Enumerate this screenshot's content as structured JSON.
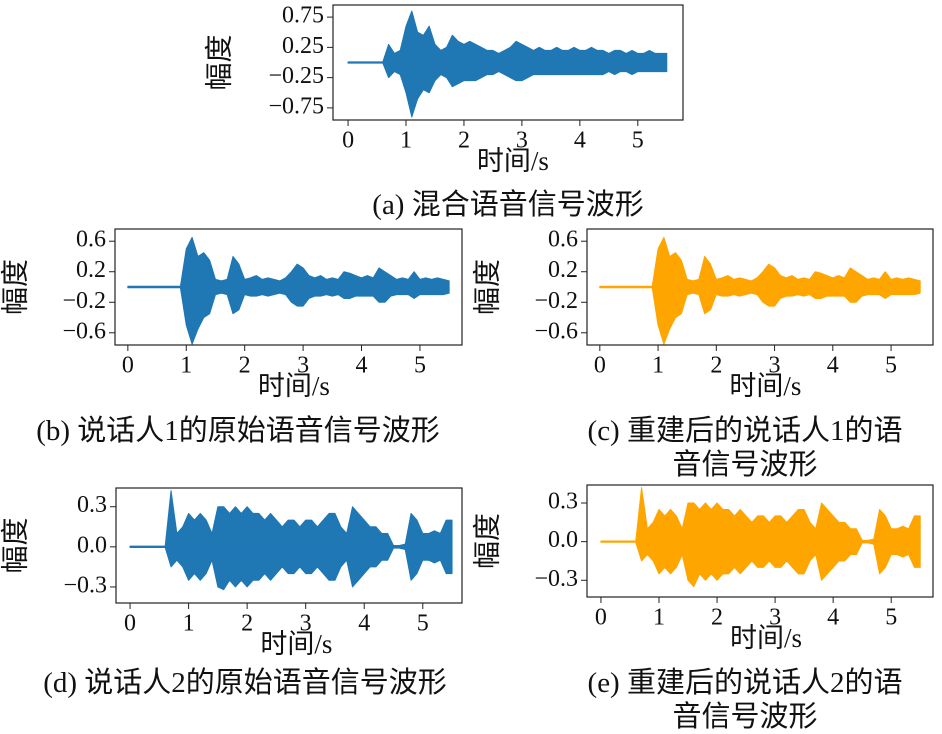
{
  "chart_data": [
    {
      "type": "area",
      "title": "(a) 混合语音信号波形",
      "xlabel": "时间/s",
      "ylabel": "幅度",
      "x": [
        0,
        0.1,
        0.2,
        0.3,
        0.4,
        0.5,
        0.6,
        0.7,
        0.8,
        0.9,
        1.0,
        1.1,
        1.2,
        1.3,
        1.4,
        1.5,
        1.6,
        1.7,
        1.8,
        1.9,
        2.0,
        2.1,
        2.2,
        2.3,
        2.4,
        2.5,
        2.6,
        2.7,
        2.8,
        2.9,
        3.0,
        3.1,
        3.2,
        3.3,
        3.4,
        3.5,
        3.6,
        3.7,
        3.8,
        3.9,
        4.0,
        4.1,
        4.2,
        4.3,
        4.4,
        4.5,
        4.6,
        4.7,
        4.8,
        4.9,
        5.0,
        5.1,
        5.2,
        5.3,
        5.4,
        5.5
      ],
      "series": [
        {
          "color": "#1f77b4",
          "values": [
            0.01,
            0.01,
            0.01,
            0.01,
            0.01,
            0.01,
            0.01,
            0.3,
            0.15,
            0.2,
            0.6,
            0.85,
            0.5,
            0.45,
            0.6,
            0.3,
            0.2,
            0.25,
            0.45,
            0.35,
            0.3,
            0.35,
            0.3,
            0.25,
            0.2,
            0.2,
            0.15,
            0.2,
            0.25,
            0.35,
            0.3,
            0.25,
            0.2,
            0.25,
            0.2,
            0.2,
            0.25,
            0.2,
            0.2,
            0.25,
            0.2,
            0.2,
            0.25,
            0.2,
            0.2,
            0.15,
            0.2,
            0.2,
            0.15,
            0.2,
            0.15,
            0.15,
            0.2,
            0.15,
            0.15,
            0.15
          ]
        },
        {
          "color": "#1f77b4",
          "values": [
            -0.01,
            -0.01,
            -0.01,
            -0.01,
            -0.01,
            -0.01,
            -0.01,
            -0.25,
            -0.15,
            -0.2,
            -0.5,
            -0.9,
            -0.6,
            -0.45,
            -0.5,
            -0.3,
            -0.2,
            -0.25,
            -0.4,
            -0.35,
            -0.3,
            -0.3,
            -0.3,
            -0.25,
            -0.2,
            -0.2,
            -0.15,
            -0.2,
            -0.25,
            -0.3,
            -0.3,
            -0.25,
            -0.2,
            -0.2,
            -0.2,
            -0.2,
            -0.2,
            -0.2,
            -0.2,
            -0.2,
            -0.2,
            -0.2,
            -0.2,
            -0.2,
            -0.2,
            -0.15,
            -0.2,
            -0.15,
            -0.15,
            -0.2,
            -0.15,
            -0.15,
            -0.15,
            -0.15,
            -0.15,
            -0.15
          ]
        }
      ],
      "xlim": [
        -0.26,
        5.78
      ],
      "xticks": [
        0,
        1,
        2,
        3,
        4,
        5
      ],
      "ylim": [
        -0.95,
        0.95
      ],
      "yticks": [
        0.75,
        0.25,
        {
          "value": -0.25,
          "label": "−0.25"
        },
        {
          "value": -0.75,
          "label": "−0.75"
        }
      ]
    },
    {
      "type": "area",
      "title": "(b) 说话人1的原始语音信号波形",
      "xlabel": "时间/s",
      "ylabel": "幅度",
      "x": [
        0,
        0.1,
        0.2,
        0.3,
        0.4,
        0.5,
        0.6,
        0.7,
        0.8,
        0.9,
        1.0,
        1.1,
        1.2,
        1.3,
        1.4,
        1.5,
        1.6,
        1.7,
        1.8,
        1.9,
        2.0,
        2.1,
        2.2,
        2.3,
        2.4,
        2.5,
        2.6,
        2.7,
        2.8,
        2.9,
        3.0,
        3.1,
        3.2,
        3.3,
        3.4,
        3.5,
        3.6,
        3.7,
        3.8,
        3.9,
        4.0,
        4.1,
        4.2,
        4.3,
        4.4,
        4.5,
        4.6,
        4.7,
        4.8,
        4.9,
        5.0,
        5.1,
        5.2,
        5.3,
        5.4,
        5.5
      ],
      "series": [
        {
          "color": "#1f77b4",
          "values": [
            0.01,
            0.01,
            0.01,
            0.01,
            0.01,
            0.01,
            0.01,
            0.01,
            0.01,
            0.01,
            0.5,
            0.65,
            0.4,
            0.45,
            0.35,
            0.1,
            0.08,
            0.1,
            0.4,
            0.3,
            0.1,
            0.12,
            0.15,
            0.1,
            0.12,
            0.1,
            0.08,
            0.12,
            0.2,
            0.3,
            0.25,
            0.15,
            0.12,
            0.15,
            0.1,
            0.12,
            0.1,
            0.2,
            0.18,
            0.15,
            0.12,
            0.15,
            0.12,
            0.25,
            0.2,
            0.15,
            0.1,
            0.12,
            0.1,
            0.2,
            0.1,
            0.12,
            0.1,
            0.12,
            0.1,
            0.08
          ]
        },
        {
          "color": "#1f77b4",
          "values": [
            -0.01,
            -0.01,
            -0.01,
            -0.01,
            -0.01,
            -0.01,
            -0.01,
            -0.01,
            -0.01,
            -0.01,
            -0.5,
            -0.75,
            -0.55,
            -0.4,
            -0.35,
            -0.1,
            -0.08,
            -0.1,
            -0.35,
            -0.3,
            -0.1,
            -0.12,
            -0.12,
            -0.1,
            -0.12,
            -0.1,
            -0.08,
            -0.1,
            -0.2,
            -0.25,
            -0.25,
            -0.15,
            -0.12,
            -0.12,
            -0.1,
            -0.12,
            -0.1,
            -0.15,
            -0.15,
            -0.12,
            -0.12,
            -0.12,
            -0.12,
            -0.2,
            -0.2,
            -0.12,
            -0.1,
            -0.1,
            -0.1,
            -0.15,
            -0.1,
            -0.1,
            -0.1,
            -0.1,
            -0.1,
            -0.08
          ]
        }
      ],
      "xlim": [
        -0.22,
        5.72
      ],
      "xticks": [
        0,
        1,
        2,
        3,
        4,
        5
      ],
      "ylim": [
        -0.76,
        0.76
      ],
      "yticks": [
        0.6,
        0.2,
        {
          "value": -0.2,
          "label": "−0.2"
        },
        {
          "value": -0.6,
          "label": "−0.6"
        }
      ]
    },
    {
      "type": "area",
      "title": "(c) 重建后的说话人1的语音信号波形",
      "xlabel": "时间/s",
      "ylabel": "幅度",
      "x": [
        0,
        0.1,
        0.2,
        0.3,
        0.4,
        0.5,
        0.6,
        0.7,
        0.8,
        0.9,
        1.0,
        1.1,
        1.2,
        1.3,
        1.4,
        1.5,
        1.6,
        1.7,
        1.8,
        1.9,
        2.0,
        2.1,
        2.2,
        2.3,
        2.4,
        2.5,
        2.6,
        2.7,
        2.8,
        2.9,
        3.0,
        3.1,
        3.2,
        3.3,
        3.4,
        3.5,
        3.6,
        3.7,
        3.8,
        3.9,
        4.0,
        4.1,
        4.2,
        4.3,
        4.4,
        4.5,
        4.6,
        4.7,
        4.8,
        4.9,
        5.0,
        5.1,
        5.2,
        5.3,
        5.4,
        5.5
      ],
      "series": [
        {
          "color": "#ffa500",
          "values": [
            0.01,
            0.01,
            0.01,
            0.01,
            0.01,
            0.01,
            0.01,
            0.01,
            0.01,
            0.01,
            0.5,
            0.65,
            0.4,
            0.45,
            0.35,
            0.1,
            0.08,
            0.1,
            0.4,
            0.3,
            0.1,
            0.12,
            0.15,
            0.1,
            0.12,
            0.1,
            0.08,
            0.12,
            0.2,
            0.3,
            0.25,
            0.15,
            0.12,
            0.15,
            0.1,
            0.12,
            0.1,
            0.2,
            0.18,
            0.15,
            0.12,
            0.15,
            0.12,
            0.25,
            0.2,
            0.15,
            0.1,
            0.12,
            0.1,
            0.2,
            0.1,
            0.12,
            0.1,
            0.12,
            0.1,
            0.08
          ]
        },
        {
          "color": "#ffa500",
          "values": [
            -0.01,
            -0.01,
            -0.01,
            -0.01,
            -0.01,
            -0.01,
            -0.01,
            -0.01,
            -0.01,
            -0.01,
            -0.5,
            -0.75,
            -0.55,
            -0.4,
            -0.35,
            -0.1,
            -0.08,
            -0.1,
            -0.35,
            -0.3,
            -0.1,
            -0.12,
            -0.12,
            -0.1,
            -0.12,
            -0.1,
            -0.08,
            -0.1,
            -0.2,
            -0.25,
            -0.25,
            -0.15,
            -0.12,
            -0.12,
            -0.1,
            -0.12,
            -0.1,
            -0.15,
            -0.15,
            -0.12,
            -0.12,
            -0.12,
            -0.12,
            -0.2,
            -0.2,
            -0.12,
            -0.1,
            -0.1,
            -0.1,
            -0.15,
            -0.1,
            -0.1,
            -0.1,
            -0.1,
            -0.1,
            -0.08
          ]
        }
      ],
      "xlim": [
        -0.22,
        5.72
      ],
      "xticks": [
        0,
        1,
        2,
        3,
        4,
        5
      ],
      "ylim": [
        -0.76,
        0.76
      ],
      "yticks": [
        0.6,
        0.2,
        {
          "value": -0.2,
          "label": "−0.2"
        },
        {
          "value": -0.6,
          "label": "−0.6"
        }
      ]
    },
    {
      "type": "area",
      "title": "(d) 说话人2的原始语音信号波形",
      "xlabel": "时间/s",
      "ylabel": "幅度",
      "x": [
        0,
        0.1,
        0.2,
        0.3,
        0.4,
        0.5,
        0.6,
        0.7,
        0.8,
        0.9,
        1.0,
        1.1,
        1.2,
        1.3,
        1.4,
        1.5,
        1.6,
        1.7,
        1.8,
        1.9,
        2.0,
        2.1,
        2.2,
        2.3,
        2.4,
        2.5,
        2.6,
        2.7,
        2.8,
        2.9,
        3.0,
        3.1,
        3.2,
        3.3,
        3.4,
        3.5,
        3.6,
        3.7,
        3.8,
        3.9,
        4.0,
        4.1,
        4.2,
        4.3,
        4.4,
        4.5,
        4.6,
        4.7,
        4.8,
        4.9,
        5.0,
        5.1,
        5.2,
        5.3,
        5.4,
        5.5
      ],
      "series": [
        {
          "color": "#1f77b4",
          "values": [
            0.005,
            0.005,
            0.005,
            0.005,
            0.005,
            0.005,
            0.005,
            0.42,
            0.1,
            0.15,
            0.25,
            0.2,
            0.25,
            0.2,
            0.1,
            0.3,
            0.3,
            0.25,
            0.3,
            0.25,
            0.3,
            0.25,
            0.25,
            0.2,
            0.25,
            0.2,
            0.15,
            0.2,
            0.2,
            0.15,
            0.2,
            0.2,
            0.15,
            0.2,
            0.25,
            0.25,
            0.15,
            0.1,
            0.3,
            0.25,
            0.2,
            0.15,
            0.15,
            0.1,
            0.1,
            0.01,
            0.01,
            0.02,
            0.25,
            0.2,
            0.1,
            0.1,
            0.12,
            0.1,
            0.2,
            0.2
          ]
        },
        {
          "color": "#1f77b4",
          "values": [
            -0.005,
            -0.005,
            -0.005,
            -0.005,
            -0.005,
            -0.005,
            -0.005,
            -0.15,
            -0.1,
            -0.15,
            -0.25,
            -0.2,
            -0.25,
            -0.2,
            -0.1,
            -0.3,
            -0.32,
            -0.25,
            -0.3,
            -0.25,
            -0.3,
            -0.25,
            -0.25,
            -0.2,
            -0.25,
            -0.2,
            -0.15,
            -0.2,
            -0.2,
            -0.15,
            -0.2,
            -0.2,
            -0.15,
            -0.2,
            -0.25,
            -0.25,
            -0.15,
            -0.1,
            -0.3,
            -0.25,
            -0.2,
            -0.15,
            -0.15,
            -0.1,
            -0.1,
            -0.01,
            -0.01,
            -0.02,
            -0.25,
            -0.2,
            -0.1,
            -0.1,
            -0.12,
            -0.1,
            -0.2,
            -0.2
          ]
        }
      ],
      "xlim": [
        -0.24,
        5.67
      ],
      "xticks": [
        0,
        1,
        2,
        3,
        4,
        5
      ],
      "ylim": [
        -0.42,
        0.44
      ],
      "yticks": [
        0.3,
        {
          "value": 0,
          "label": "0.0"
        },
        {
          "value": -0.3,
          "label": "−0.3"
        }
      ]
    },
    {
      "type": "area",
      "title": "(e) 重建后的说话人2的语音信号波形",
      "xlabel": "时间/s",
      "ylabel": "幅度",
      "x": [
        0,
        0.1,
        0.2,
        0.3,
        0.4,
        0.5,
        0.6,
        0.7,
        0.8,
        0.9,
        1.0,
        1.1,
        1.2,
        1.3,
        1.4,
        1.5,
        1.6,
        1.7,
        1.8,
        1.9,
        2.0,
        2.1,
        2.2,
        2.3,
        2.4,
        2.5,
        2.6,
        2.7,
        2.8,
        2.9,
        3.0,
        3.1,
        3.2,
        3.3,
        3.4,
        3.5,
        3.6,
        3.7,
        3.8,
        3.9,
        4.0,
        4.1,
        4.2,
        4.3,
        4.4,
        4.5,
        4.6,
        4.7,
        4.8,
        4.9,
        5.0,
        5.1,
        5.2,
        5.3,
        5.4,
        5.5
      ],
      "series": [
        {
          "color": "#ffa500",
          "values": [
            0.005,
            0.005,
            0.005,
            0.005,
            0.005,
            0.005,
            0.005,
            0.42,
            0.1,
            0.15,
            0.25,
            0.2,
            0.25,
            0.2,
            0.1,
            0.3,
            0.3,
            0.25,
            0.3,
            0.25,
            0.3,
            0.25,
            0.25,
            0.2,
            0.25,
            0.2,
            0.15,
            0.2,
            0.2,
            0.15,
            0.2,
            0.2,
            0.15,
            0.2,
            0.25,
            0.25,
            0.15,
            0.1,
            0.3,
            0.25,
            0.2,
            0.15,
            0.15,
            0.1,
            0.1,
            0.01,
            0.01,
            0.02,
            0.25,
            0.2,
            0.1,
            0.1,
            0.12,
            0.1,
            0.2,
            0.2
          ]
        },
        {
          "color": "#ffa500",
          "values": [
            -0.005,
            -0.005,
            -0.005,
            -0.005,
            -0.005,
            -0.005,
            -0.005,
            -0.15,
            -0.1,
            -0.15,
            -0.25,
            -0.2,
            -0.25,
            -0.2,
            -0.1,
            -0.3,
            -0.35,
            -0.25,
            -0.3,
            -0.25,
            -0.3,
            -0.25,
            -0.25,
            -0.2,
            -0.25,
            -0.2,
            -0.15,
            -0.2,
            -0.2,
            -0.15,
            -0.2,
            -0.2,
            -0.15,
            -0.2,
            -0.25,
            -0.25,
            -0.15,
            -0.1,
            -0.3,
            -0.25,
            -0.2,
            -0.15,
            -0.15,
            -0.1,
            -0.1,
            -0.01,
            -0.01,
            -0.02,
            -0.25,
            -0.2,
            -0.1,
            -0.1,
            -0.12,
            -0.1,
            -0.2,
            -0.2
          ]
        }
      ],
      "xlim": [
        -0.24,
        5.72
      ],
      "xticks": [
        0,
        1,
        2,
        3,
        4,
        5
      ],
      "ylim": [
        -0.43,
        0.44
      ],
      "yticks": [
        0.3,
        {
          "value": 0,
          "label": "0.0"
        },
        {
          "value": -0.3,
          "label": "−0.3"
        }
      ]
    }
  ]
}
